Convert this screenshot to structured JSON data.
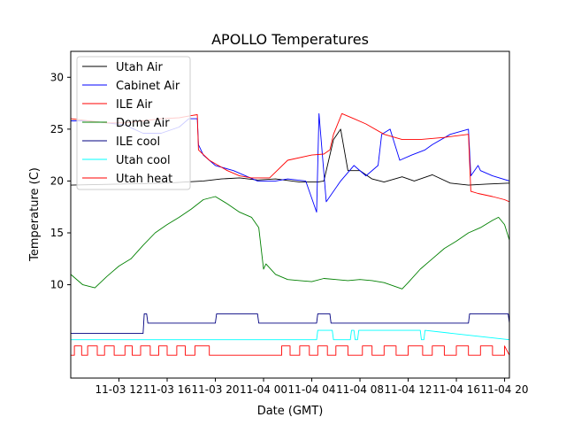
{
  "chart_data": {
    "type": "line",
    "title": "APOLLO Temperatures",
    "xlabel": "Date (GMT)",
    "ylabel": "Temperature (C)",
    "xlim": [
      8,
      44.4
    ],
    "ylim": [
      1,
      32.5
    ],
    "x_unit": "hours since 11-03 00:00 GMT",
    "y_ticks": [
      10,
      15,
      20,
      25,
      30
    ],
    "x_ticks": [
      {
        "value": 12,
        "label": "11-03 12"
      },
      {
        "value": 16,
        "label": "11-03 16"
      },
      {
        "value": 20,
        "label": "11-03 20"
      },
      {
        "value": 24,
        "label": "11-04 00"
      },
      {
        "value": 28,
        "label": "11-04 04"
      },
      {
        "value": 32,
        "label": "11-04 08"
      },
      {
        "value": 36,
        "label": "11-04 12"
      },
      {
        "value": 40,
        "label": "11-04 16"
      },
      {
        "value": 44,
        "label": "11-04 20"
      }
    ],
    "legend_position": "upper-left",
    "series": [
      {
        "name": "Utah Air",
        "color": "#000000",
        "x": [
          8,
          12,
          16,
          17.5,
          19,
          20.5,
          22,
          23.5,
          25,
          27,
          28.5,
          29,
          29.8,
          30.4,
          31,
          32,
          33,
          34,
          35.5,
          36.5,
          38,
          39.5,
          41,
          42.5,
          44.4
        ],
        "y": [
          19.6,
          19.7,
          19.8,
          19.9,
          20.0,
          20.2,
          20.3,
          20.1,
          20.2,
          19.9,
          19.9,
          20.0,
          24.0,
          25.0,
          21.0,
          21.0,
          20.2,
          19.9,
          20.4,
          20.0,
          20.6,
          19.8,
          19.6,
          19.7,
          19.8
        ]
      },
      {
        "name": "Cabinet Air",
        "color": "#0000ff",
        "x": [
          8,
          9.5,
          11,
          12.5,
          14,
          15.5,
          17,
          17.8,
          18.5,
          18.6,
          19,
          20,
          21.5,
          22.5,
          23.5,
          25,
          26,
          27.5,
          28.4,
          28.6,
          29.2,
          30.4,
          31.5,
          32.5,
          33.5,
          33.8,
          34.5,
          35.3,
          36.3,
          37.4,
          38,
          39.5,
          41,
          41.2,
          41.8,
          42,
          43,
          44.4
        ],
        "y": [
          25.8,
          25.8,
          25.6,
          25.4,
          24.6,
          24.6,
          25.2,
          26.0,
          26.0,
          23.5,
          22.5,
          21.5,
          21.0,
          20.5,
          20.0,
          20.0,
          20.2,
          20.0,
          17.0,
          26.5,
          18.0,
          20.0,
          21.5,
          20.5,
          21.5,
          24.5,
          25.0,
          22.0,
          22.5,
          23.0,
          23.5,
          24.5,
          25.0,
          20.5,
          21.5,
          21.0,
          20.5,
          20.0
        ]
      },
      {
        "name": "ILE Air",
        "color": "#ff0000",
        "x": [
          8,
          9.5,
          11,
          12.5,
          14,
          15.5,
          17,
          18,
          18.5,
          18.6,
          19.5,
          21,
          22,
          23,
          24.5,
          26,
          28,
          29,
          29.5,
          29.8,
          30.5,
          31.5,
          32.5,
          34,
          35.5,
          37,
          39,
          41,
          41.2,
          41.8,
          43,
          44,
          44.4
        ],
        "y": [
          26.0,
          25.8,
          25.6,
          25.6,
          25.8,
          26.0,
          26.1,
          26.3,
          26.4,
          23.0,
          22.0,
          21.0,
          20.5,
          20.3,
          20.3,
          22.0,
          22.5,
          22.6,
          23.0,
          24.5,
          26.5,
          26.0,
          25.5,
          24.5,
          24.0,
          24.0,
          24.2,
          24.5,
          19.0,
          18.8,
          18.5,
          18.2,
          18.0
        ]
      },
      {
        "name": "Dome Air",
        "color": "#008000",
        "x": [
          8,
          9,
          10,
          11,
          12,
          13,
          14,
          15,
          16,
          17,
          18,
          19,
          20,
          21,
          22,
          23,
          23.6,
          24,
          24.2,
          25,
          26,
          27,
          28,
          29,
          30,
          31,
          32,
          33,
          34,
          35,
          35.5,
          36,
          37,
          38,
          39,
          40,
          41,
          42,
          43,
          43.5,
          44,
          44.4
        ],
        "y": [
          11.0,
          10.0,
          9.7,
          10.8,
          11.8,
          12.5,
          13.8,
          15.0,
          15.8,
          16.5,
          17.3,
          18.2,
          18.5,
          17.8,
          17.0,
          16.5,
          15.5,
          11.5,
          12.0,
          11.0,
          10.5,
          10.4,
          10.3,
          10.6,
          10.5,
          10.4,
          10.5,
          10.4,
          10.2,
          9.8,
          9.6,
          10.2,
          11.5,
          12.5,
          13.5,
          14.2,
          15.0,
          15.5,
          16.2,
          16.5,
          15.8,
          14.3
        ]
      },
      {
        "name": "ILE cool",
        "color": "#000080",
        "x": [
          8,
          14,
          14.1,
          14.3,
          14.4,
          20,
          20.1,
          23.5,
          23.6,
          28.4,
          28.5,
          29.5,
          29.6,
          41,
          41.1,
          44.3,
          44.4
        ],
        "y": [
          5.3,
          5.3,
          7.2,
          7.2,
          6.3,
          6.3,
          7.2,
          7.2,
          6.3,
          6.3,
          7.2,
          7.2,
          6.3,
          6.3,
          7.2,
          7.2,
          6.3
        ]
      },
      {
        "name": "Utah cool",
        "color": "#00ffff",
        "x": [
          8,
          28.4,
          28.5,
          29.7,
          29.8,
          31.2,
          31.3,
          31.5,
          31.6,
          31.8,
          31.9,
          37,
          37.1,
          37.3,
          37.4,
          44.4
        ],
        "y": [
          4.7,
          4.7,
          5.6,
          5.6,
          4.7,
          4.7,
          5.6,
          5.6,
          4.7,
          4.7,
          5.6,
          5.6,
          4.7,
          4.7,
          5.6,
          4.7
        ]
      },
      {
        "name": "Utah heat",
        "color": "#ff0000",
        "x": [
          8,
          8.3,
          8.3,
          8.9,
          8.9,
          9.4,
          9.4,
          10.2,
          10.2,
          10.8,
          10.8,
          11.6,
          11.6,
          12.5,
          12.5,
          13.1,
          13.1,
          13.8,
          13.8,
          14.6,
          14.6,
          15.3,
          15.3,
          16.0,
          16.0,
          16.8,
          16.8,
          17.5,
          17.5,
          18.3,
          18.3,
          19.5,
          19.5,
          25.5,
          25.5,
          26.2,
          26.2,
          27.0,
          27.0,
          27.8,
          27.8,
          28.5,
          28.5,
          29.3,
          29.3,
          30.0,
          30.0,
          31.0,
          31.0,
          32.2,
          32.2,
          33.0,
          33.0,
          34.0,
          34.0,
          35.0,
          35.0,
          36.0,
          36.0,
          37.2,
          37.2,
          38.0,
          38.0,
          39.0,
          39.0,
          40.0,
          40.0,
          41.0,
          41.0,
          42.0,
          42.0,
          43.0,
          43.0,
          44.0,
          44.0,
          44.4
        ],
        "y": [
          3.2,
          3.2,
          4.1,
          4.1,
          3.2,
          3.2,
          4.1,
          4.1,
          3.2,
          3.2,
          4.1,
          4.1,
          3.2,
          3.2,
          4.1,
          4.1,
          3.2,
          3.2,
          4.1,
          4.1,
          3.2,
          3.2,
          4.1,
          4.1,
          3.2,
          3.2,
          4.1,
          4.1,
          3.2,
          3.2,
          4.1,
          4.1,
          3.2,
          3.2,
          4.1,
          4.1,
          3.2,
          3.2,
          4.1,
          4.1,
          3.2,
          3.2,
          4.1,
          4.1,
          3.2,
          3.2,
          4.1,
          4.1,
          3.2,
          3.2,
          4.1,
          4.1,
          3.2,
          3.2,
          4.1,
          4.1,
          3.2,
          3.2,
          4.1,
          4.1,
          3.2,
          3.2,
          4.1,
          4.1,
          3.2,
          3.2,
          4.1,
          4.1,
          3.2,
          3.2,
          4.1,
          4.1,
          3.2,
          3.2,
          4.1,
          3.2
        ]
      }
    ]
  }
}
